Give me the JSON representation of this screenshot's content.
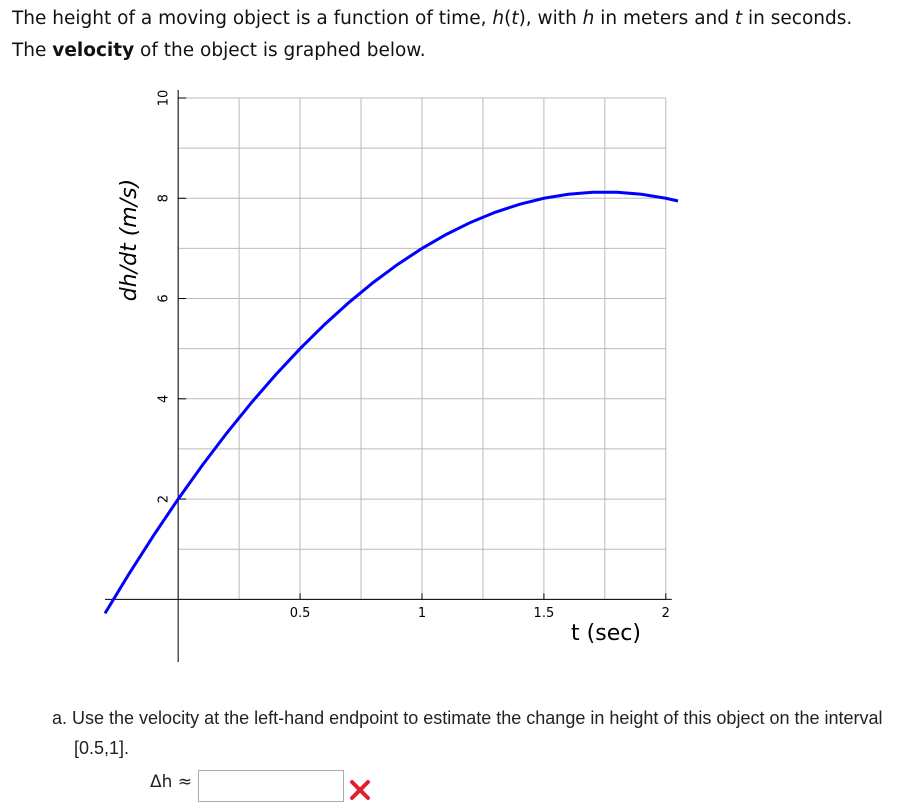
{
  "intro": {
    "line1": [
      "The height of a moving object is a function of time, ",
      "h",
      "(",
      "t",
      "), with ",
      "h",
      " in meters and ",
      "t",
      " in seconds."
    ],
    "line2": [
      "The ",
      "velocity",
      " of the object is graphed below."
    ]
  },
  "chart_data": {
    "type": "line",
    "xlabel": "t (sec)",
    "ylabel": "dh/dt (m/s)",
    "x": [
      -0.3,
      -0.2,
      -0.1,
      0,
      0.1,
      0.2,
      0.3,
      0.4,
      0.5,
      0.6,
      0.7,
      0.8,
      0.9,
      1.0,
      1.1,
      1.2,
      1.3,
      1.4,
      1.5,
      1.6,
      1.7,
      1.8,
      1.9,
      2.0,
      2.05
    ],
    "values": [
      -0.28,
      0.52,
      1.28,
      2,
      2.68,
      3.32,
      3.92,
      4.48,
      5,
      5.48,
      5.92,
      6.32,
      6.68,
      7,
      7.28,
      7.52,
      7.72,
      7.88,
      8,
      8.08,
      8.12,
      8.12,
      8.08,
      8,
      7.945
    ],
    "color": "#0000ff",
    "xlim": [
      -0.3,
      2.05
    ],
    "ylim": [
      -1.25,
      10
    ],
    "xticks": [
      0.5,
      1,
      1.5,
      2
    ],
    "yticks": [
      2,
      4,
      6,
      8,
      10
    ],
    "x_grid": [
      0,
      0.25,
      0.5,
      0.75,
      1,
      1.25,
      1.5,
      1.75,
      2
    ],
    "y_grid": [
      0,
      1,
      2,
      3,
      4,
      5,
      6,
      7,
      8,
      9,
      10
    ],
    "grid": true
  },
  "question": {
    "text": "a. Use the velocity at the left-hand endpoint to estimate the change in height of this object on the interval [0.5,1].",
    "answer_label": "Δh ≈"
  }
}
